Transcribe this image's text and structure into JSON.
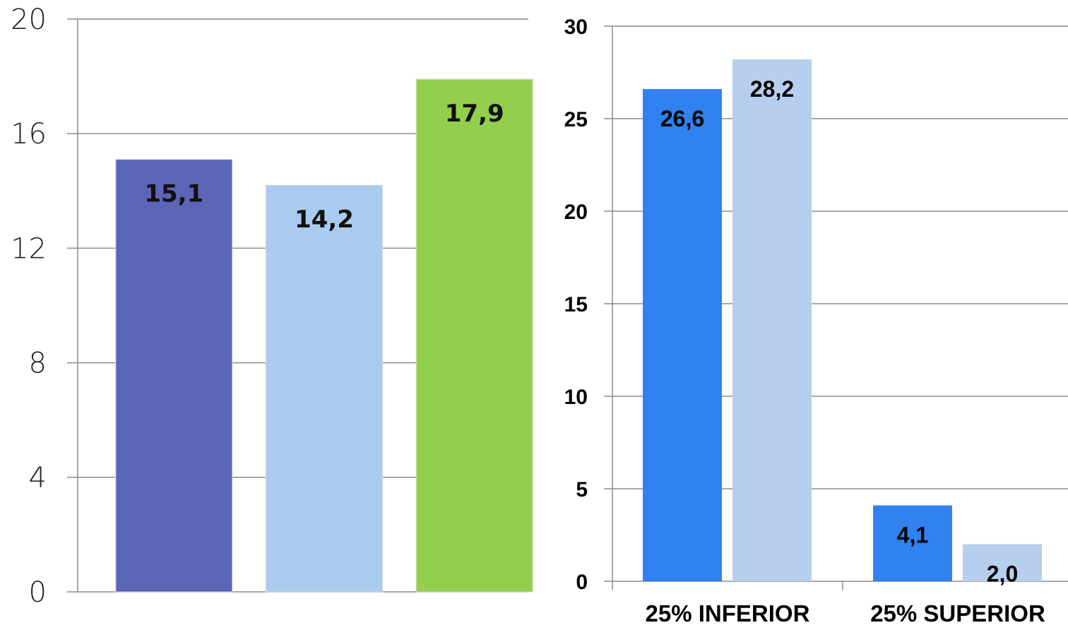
{
  "chart_data": [
    {
      "type": "bar",
      "categories": [
        "",
        "",
        ""
      ],
      "values": [
        15.1,
        14.2,
        17.9
      ],
      "labels": [
        "15,1",
        "14,2",
        "17,9"
      ],
      "colors": [
        "#5b65b7",
        "#a9cbef",
        "#92cf4c"
      ],
      "ylim": [
        0,
        20
      ],
      "yticks": [
        "0",
        "4",
        "8",
        "12",
        "16",
        "20"
      ],
      "grid": true
    },
    {
      "type": "bar",
      "categories": [
        "25% INFERIOR",
        "25% SUPERIOR"
      ],
      "series": [
        {
          "values": [
            26.6,
            4.1
          ],
          "labels": [
            "26,6",
            "4,1"
          ],
          "color": "#2f82f0"
        },
        {
          "values": [
            28.2,
            2.0
          ],
          "labels": [
            "28,2",
            "2,0"
          ],
          "color": "#b6cfee"
        }
      ],
      "ylim": [
        0,
        30
      ],
      "yticks": [
        "0",
        "5",
        "10",
        "15",
        "20",
        "25",
        "30"
      ],
      "grid": true
    }
  ]
}
